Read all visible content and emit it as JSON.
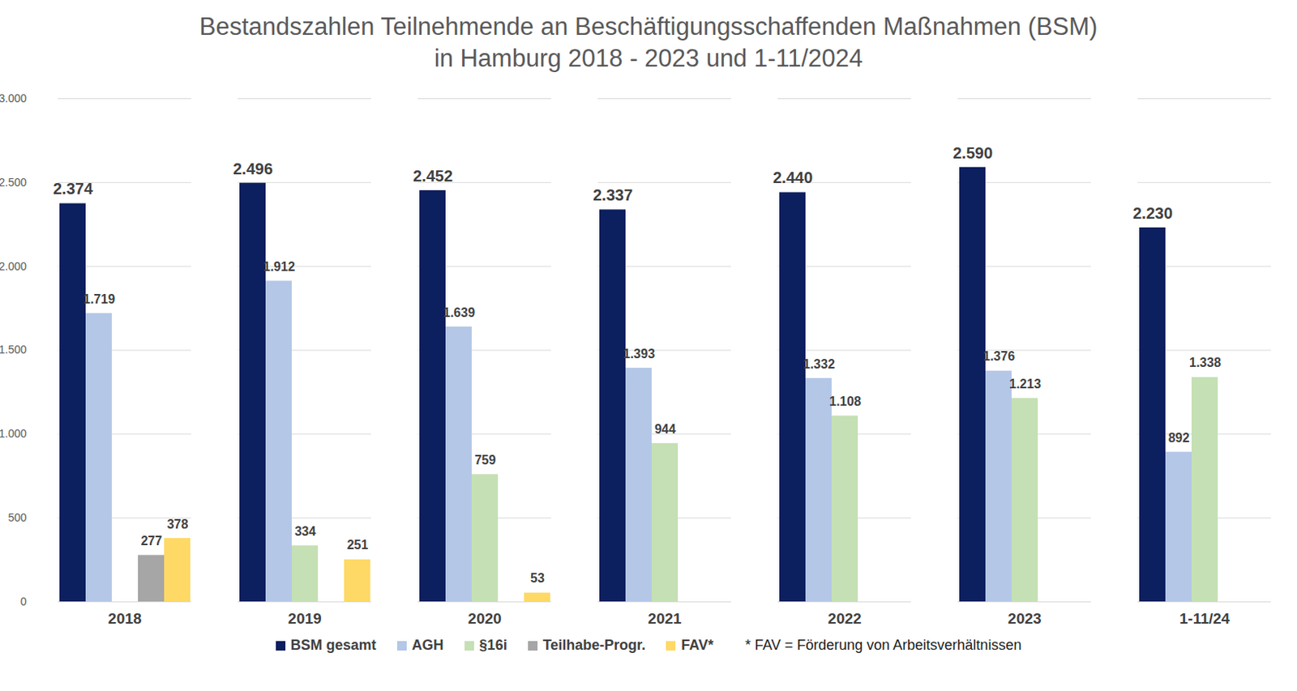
{
  "chart_data": {
    "type": "bar",
    "title": "Bestandszahlen Teilnehmende an Beschäftigungsschaffenden Maßnahmen (BSM)",
    "subtitle": "in Hamburg 2018 - 2023 und 1-11/2024",
    "categories": [
      "2018",
      "2019",
      "2020",
      "2021",
      "2022",
      "2023",
      "1-11/24"
    ],
    "series": [
      {
        "name": "BSM gesamt",
        "color": "#0c1f5e",
        "values": [
          2374,
          2496,
          2452,
          2337,
          2440,
          2590,
          2230
        ],
        "value_labels": [
          "2.374",
          "2.496",
          "2.452",
          "2.337",
          "2.440",
          "2.590",
          "2.230"
        ]
      },
      {
        "name": "AGH",
        "color": "#b4c7e7",
        "values": [
          1719,
          1912,
          1639,
          1393,
          1332,
          1376,
          892
        ],
        "value_labels": [
          "1.719",
          "1.912",
          "1.639",
          "1.393",
          "1.332",
          "1.376",
          "892"
        ]
      },
      {
        "name": "§16i",
        "color": "#c5e0b4",
        "values": [
          null,
          334,
          759,
          944,
          1108,
          1213,
          1338
        ],
        "value_labels": [
          null,
          "334",
          "759",
          "944",
          "1.108",
          "1.213",
          "1.338"
        ]
      },
      {
        "name": "Teilhabe-Progr.",
        "color": "#a6a6a6",
        "values": [
          277,
          null,
          null,
          null,
          null,
          null,
          null
        ],
        "value_labels": [
          "277",
          null,
          null,
          null,
          null,
          null,
          null
        ]
      },
      {
        "name": "FAV*",
        "color": "#ffd966",
        "values": [
          378,
          251,
          53,
          null,
          null,
          null,
          null
        ],
        "value_labels": [
          "378",
          "251",
          "53",
          null,
          null,
          null,
          null
        ]
      }
    ],
    "ylim": [
      0,
      3000
    ],
    "yticks": [
      0,
      500,
      {
        "value": 1000,
        "label": "1.000"
      },
      {
        "value": 1500,
        "label": "1.500"
      },
      {
        "value": 2000,
        "label": "2.000"
      },
      {
        "value": 2500,
        "label": "2.500"
      },
      {
        "value": 3000,
        "label": "3.000"
      }
    ],
    "grid": true,
    "data_labels": true,
    "legend": "bottom",
    "annotations": [
      "* FAV = Förderung von Arbeitsverhältnissen"
    ]
  }
}
